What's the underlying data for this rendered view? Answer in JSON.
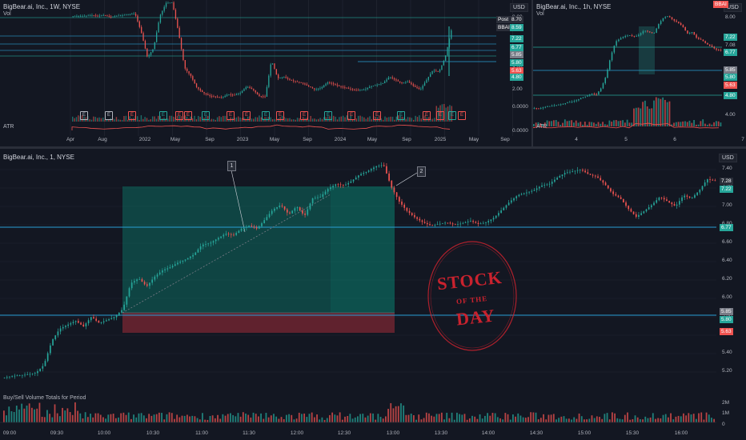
{
  "weekly": {
    "title": "BigBear.ai, Inc., 1W, NYSE",
    "vol_label": "Vol",
    "atr_label": "ATR",
    "currency": "USD",
    "post_label": "Post",
    "post_value": "8.70",
    "symbol_tag": "BBAI",
    "symbol_value": "8.59",
    "price_ticks": [
      "8.00",
      "6.00",
      "4.00",
      "2.00",
      "0.0000",
      "0.0000"
    ],
    "price_tags": [
      {
        "text": "7.22",
        "color": "#26a69a"
      },
      {
        "text": "6.77",
        "color": "#26a69a"
      },
      {
        "text": "5.85",
        "color": "#787b86"
      },
      {
        "text": "5.80",
        "color": "#26a69a"
      },
      {
        "text": "5.63",
        "color": "#ef5350"
      },
      {
        "text": "4.80",
        "color": "#26a69a"
      }
    ],
    "time_ticks": [
      "Apr",
      "Aug",
      "2022",
      "May",
      "Sep",
      "2023",
      "May",
      "Sep",
      "2024",
      "May",
      "Sep",
      "2025",
      "May",
      "Sep"
    ],
    "earnings": [
      "E",
      "E",
      "E",
      "E",
      "E",
      "E",
      "E",
      "E",
      "E",
      "E",
      "E",
      "E",
      "E",
      "E",
      "E",
      "E",
      "E",
      "E",
      "E",
      "E"
    ]
  },
  "hourly": {
    "title": "BigBear.ai, Inc., 1h, NYSE",
    "vol_label": "Vol",
    "atr_label": "ATR",
    "currency": "USD",
    "symbol_tag": "BBAI",
    "price_ticks": [
      "8.00",
      "7.08",
      "4.00"
    ],
    "price_tags": [
      {
        "text": "7.22",
        "color": "#26a69a"
      },
      {
        "text": "6.77",
        "color": "#26a69a"
      },
      {
        "text": "5.85",
        "color": "#787b86"
      },
      {
        "text": "5.80",
        "color": "#26a69a"
      },
      {
        "text": "5.63",
        "color": "#ef5350"
      },
      {
        "text": "4.80",
        "color": "#26a69a"
      }
    ],
    "time_ticks": [
      "4",
      "5",
      "6",
      "7"
    ]
  },
  "main": {
    "title": "BigBear.ai, Inc., 1, NYSE",
    "currency": "USD",
    "price_ticks": [
      "7.40",
      "7.20",
      "7.00",
      "6.80",
      "6.60",
      "6.40",
      "6.20",
      "6.00",
      "5.80",
      "5.60",
      "5.40",
      "5.20"
    ],
    "price_tags": [
      {
        "text": "7.28",
        "color": "#2a2e39"
      },
      {
        "text": "7.22",
        "color": "#26a69a"
      },
      {
        "text": "6.77",
        "color": "#26a69a"
      },
      {
        "text": "5.85",
        "color": "#787b86"
      },
      {
        "text": "5.80",
        "color": "#26a69a"
      },
      {
        "text": "5.63",
        "color": "#ef5350"
      }
    ],
    "time_ticks": [
      "09:00",
      "09:30",
      "10:00",
      "10:30",
      "11:00",
      "11:30",
      "12:00",
      "12:30",
      "13:00",
      "13:30",
      "14:00",
      "14:30",
      "15:00",
      "15:30",
      "16:00"
    ],
    "marker_1": "1",
    "marker_2": "2",
    "volume_label": "Buy/Sell Volume Totals for Period",
    "volume_ticks": [
      "2M",
      "1M",
      "0"
    ],
    "stamp_top": "STOCK",
    "stamp_mid": "OF THE",
    "stamp_bottom": "DAY"
  }
}
